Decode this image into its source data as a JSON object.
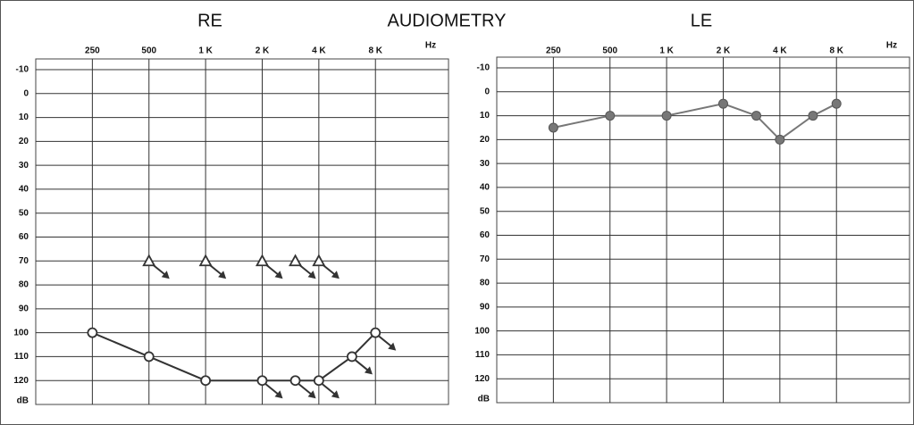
{
  "title": "AUDIOMETRY",
  "chart_data": [
    {
      "type": "line",
      "title": "RE",
      "x_scale": "log",
      "y_inverted": true,
      "grid": true,
      "xlabel": "Hz",
      "ylabel": "dB",
      "xlim": [
        125,
        20000
      ],
      "ylim": [
        -10,
        130
      ],
      "xticks": [
        250,
        500,
        {
          "value": 1000,
          "label": "1 K"
        },
        {
          "value": 2000,
          "label": "2 K"
        },
        {
          "value": 4000,
          "label": "4 K"
        },
        {
          "value": 8000,
          "label": "8 K"
        }
      ],
      "yticks": [
        -10,
        0,
        10,
        20,
        30,
        40,
        50,
        60,
        70,
        80,
        90,
        100,
        110,
        120
      ],
      "series": [
        {
          "marker": "circle",
          "color": "#333333",
          "connect": true,
          "x": [
            250,
            500,
            1000,
            2000,
            3000,
            4000,
            6000,
            8000
          ],
          "values": [
            100,
            110,
            120,
            120,
            120,
            120,
            110,
            100
          ],
          "no_response": [
            false,
            false,
            false,
            true,
            true,
            true,
            true,
            true
          ]
        },
        {
          "marker": "triangle",
          "color": "#333333",
          "connect": false,
          "x": [
            500,
            1000,
            2000,
            3000,
            4000
          ],
          "values": [
            70,
            70,
            70,
            70,
            70
          ],
          "no_response": [
            true,
            true,
            true,
            true,
            true
          ]
        }
      ]
    },
    {
      "type": "line",
      "title": "LE",
      "x_scale": "log",
      "y_inverted": true,
      "grid": true,
      "xlabel": "Hz",
      "ylabel": "dB",
      "xlim": [
        125,
        20000
      ],
      "ylim": [
        -10,
        130
      ],
      "xticks": [
        250,
        500,
        {
          "value": 1000,
          "label": "1 K"
        },
        {
          "value": 2000,
          "label": "2 K"
        },
        {
          "value": 4000,
          "label": "4 K"
        },
        {
          "value": 8000,
          "label": "8 K"
        }
      ],
      "yticks": [
        -10,
        0,
        10,
        20,
        30,
        40,
        50,
        60,
        70,
        80,
        90,
        100,
        110,
        120
      ],
      "series": [
        {
          "marker": "dot",
          "color": "#777777",
          "connect": true,
          "x": [
            250,
            500,
            1000,
            2000,
            3000,
            4000,
            6000,
            8000
          ],
          "values": [
            15,
            10,
            10,
            5,
            10,
            20,
            10,
            5
          ],
          "no_response": [
            false,
            false,
            false,
            false,
            false,
            false,
            false,
            false
          ]
        }
      ]
    }
  ]
}
